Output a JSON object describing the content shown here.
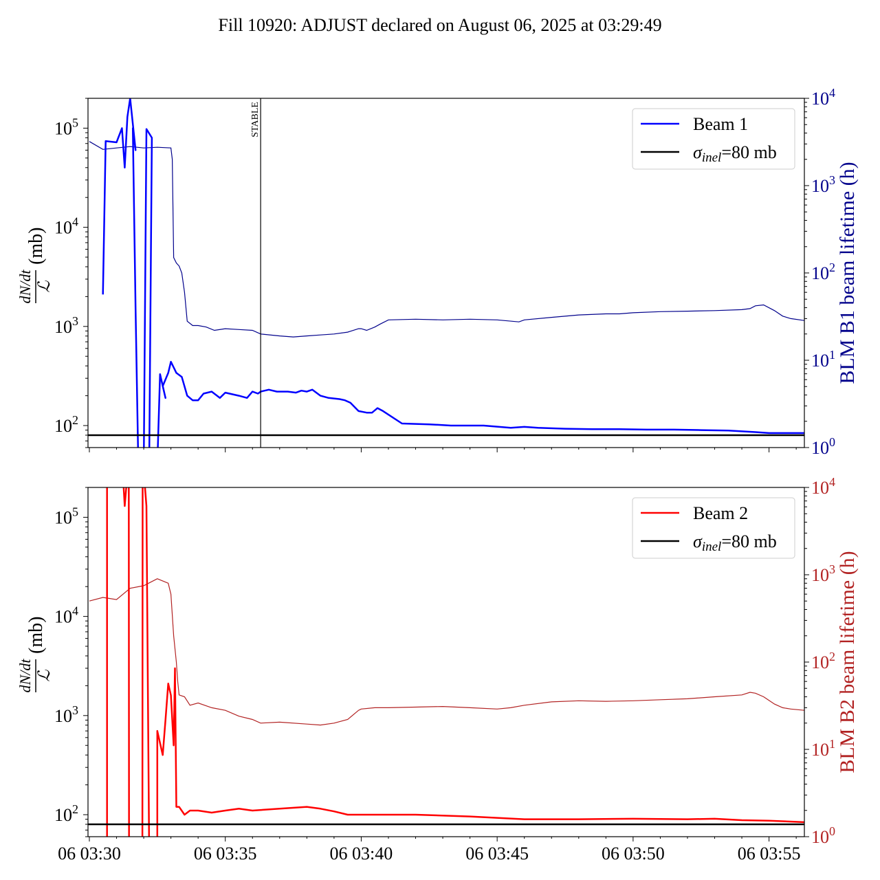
{
  "chart_data": {
    "title": "Fill 10920: ADJUST declared on August 06, 2025 at 03:29:49",
    "x_ticks": [
      "06 03:30",
      "06 03:35",
      "06 03:40",
      "06 03:45",
      "06 03:50",
      "06 03:55"
    ],
    "x_range_min": [
      -0.05,
      26.3
    ],
    "annotation": {
      "text": "STABLE",
      "x_min": 6.3
    },
    "panels": [
      {
        "type": "line",
        "left_axis": {
          "label_num": "dN/dt",
          "label_den": "ℒ",
          "label_unit": "(mb)",
          "scale": "log",
          "ylim": [
            60,
            200000
          ],
          "ticks": [
            {
              "v": 100,
              "exp": "2"
            },
            {
              "v": 1000,
              "exp": "3"
            },
            {
              "v": 10000,
              "exp": "4"
            },
            {
              "v": 100000,
              "exp": "5"
            }
          ],
          "tick_base": "10"
        },
        "right_axis": {
          "label": "BLM B1 beam lifetime (h)",
          "scale": "log",
          "ylim": [
            1,
            10000
          ],
          "ticks": [
            {
              "v": 1,
              "exp": "0"
            },
            {
              "v": 10,
              "exp": "1"
            },
            {
              "v": 100,
              "exp": "2"
            },
            {
              "v": 1000,
              "exp": "3"
            },
            {
              "v": 10000,
              "exp": "4"
            }
          ],
          "tick_base": "10",
          "color": "#00008b"
        },
        "legend": {
          "position": "top-right",
          "entries": [
            {
              "label": "Beam 1",
              "color": "#0000ff"
            },
            {
              "label_sym": "σ",
              "label_sub": "inel",
              "label_rest": "=80 mb",
              "color": "#000000"
            }
          ]
        },
        "reference_line": {
          "y": 80,
          "color": "#000000"
        },
        "main_series": {
          "color": "#0000ff",
          "x_min": [
            0.5,
            0.6,
            0.6,
            1.0,
            1.2,
            1.3,
            1.4,
            1.5,
            1.7,
            1.6,
            1.7,
            1.8,
            2.0,
            2.1,
            2.3,
            2.2,
            2.4,
            2.5,
            2.6,
            2.8,
            2.7,
            2.9,
            3.0,
            3.2,
            3.4,
            3.6,
            3.8,
            4.0,
            4.2,
            4.5,
            4.8,
            5.0,
            5.5,
            5.8,
            6.0,
            6.2,
            6.3,
            6.6,
            6.9,
            7.3,
            7.6,
            7.8,
            8.0,
            8.2,
            8.5,
            8.8,
            9.2,
            9.4,
            9.6,
            9.9,
            10.2,
            10.4,
            10.6,
            10.8,
            11.5,
            12.5,
            13.3,
            13.6,
            14.5,
            15.5,
            16.0,
            16.5,
            17.5,
            18.5,
            19.5,
            20.5,
            21.5,
            22.5,
            23.5,
            24.5,
            25.0,
            25.5,
            26.3
          ],
          "y": [
            2100,
            74000,
            74000,
            72000,
            100000,
            40000,
            130000,
            200000,
            60000,
            100000,
            1500,
            40,
            40,
            98000,
            80000,
            40,
            40,
            40,
            330,
            190,
            250,
            340,
            440,
            340,
            310,
            200,
            180,
            180,
            210,
            220,
            190,
            215,
            200,
            190,
            220,
            210,
            220,
            230,
            220,
            220,
            215,
            225,
            220,
            230,
            200,
            190,
            185,
            180,
            170,
            140,
            135,
            135,
            150,
            140,
            105,
            103,
            100,
            100,
            100,
            95,
            97,
            95,
            93,
            92,
            92,
            91,
            91,
            90,
            89,
            86,
            84,
            84,
            84
          ]
        },
        "lifetime_series": {
          "color": "#00008b",
          "x_min": [
            0.0,
            0.5,
            1.0,
            1.5,
            2.0,
            2.5,
            3.0,
            3.05,
            3.1,
            3.2,
            3.3,
            3.4,
            3.5,
            3.6,
            3.8,
            4.0,
            4.3,
            4.6,
            5.0,
            5.5,
            6.0,
            6.3,
            7.0,
            7.5,
            8.0,
            8.5,
            9.0,
            9.5,
            9.9,
            10.0,
            10.2,
            10.5,
            10.7,
            11.0,
            12.0,
            13.0,
            14.0,
            15.0,
            15.8,
            16.0,
            17.0,
            18.0,
            19.0,
            19.5,
            20.0,
            21.0,
            22.0,
            23.0,
            24.0,
            24.3,
            24.5,
            24.8,
            25.2,
            25.5,
            25.8,
            26.3
          ],
          "y": [
            3200,
            2600,
            2700,
            2800,
            2700,
            2750,
            2700,
            2000,
            150,
            130,
            120,
            100,
            60,
            28,
            25,
            25,
            24,
            22,
            23,
            22.5,
            22,
            20,
            19,
            18.5,
            19,
            19.5,
            20,
            21,
            23,
            23,
            22,
            24,
            26,
            29,
            29.5,
            29,
            29.5,
            29,
            27.5,
            29,
            31,
            33,
            34,
            34,
            35,
            36,
            36.5,
            37,
            38,
            39,
            42,
            43,
            37,
            32,
            30,
            28.5
          ]
        }
      },
      {
        "type": "line",
        "left_axis": {
          "label_num": "dN/dt",
          "label_den": "ℒ",
          "label_unit": "(mb)",
          "scale": "log",
          "ylim": [
            60,
            200000
          ],
          "ticks": [
            {
              "v": 100,
              "exp": "2"
            },
            {
              "v": 1000,
              "exp": "3"
            },
            {
              "v": 10000,
              "exp": "4"
            },
            {
              "v": 100000,
              "exp": "5"
            }
          ],
          "tick_base": "10"
        },
        "right_axis": {
          "label": "BLM B2 beam lifetime (h)",
          "scale": "log",
          "ylim": [
            1,
            10000
          ],
          "ticks": [
            {
              "v": 1,
              "exp": "0"
            },
            {
              "v": 10,
              "exp": "1"
            },
            {
              "v": 100,
              "exp": "2"
            },
            {
              "v": 1000,
              "exp": "3"
            },
            {
              "v": 10000,
              "exp": "4"
            }
          ],
          "tick_base": "10",
          "color": "#b22222"
        },
        "legend": {
          "position": "top-right",
          "entries": [
            {
              "label": "Beam 2",
              "color": "#ff0000"
            },
            {
              "label_sym": "σ",
              "label_sub": "inel",
              "label_rest": "=80 mb",
              "color": "#000000"
            }
          ]
        },
        "reference_line": {
          "y": 80,
          "color": "#000000"
        },
        "main_series": {
          "color": "#ff0000",
          "x_min": [
            0.65,
            0.65,
            0.66,
            1.2,
            1.3,
            1.45,
            1.46,
            1.95,
            1.96,
            2.1,
            2.2,
            2.21,
            2.25,
            2.5,
            2.5,
            2.7,
            2.8,
            2.9,
            3.0,
            3.1,
            3.15,
            3.2,
            3.3,
            3.5,
            3.7,
            4.0,
            4.5,
            5.0,
            5.5,
            6.0,
            7.0,
            8.0,
            8.5,
            9.0,
            9.5,
            10.0,
            12.0,
            14.0,
            15.0,
            16.0,
            18.0,
            20.0,
            22.0,
            23.0,
            24.0,
            25.0,
            26.3
          ],
          "y": [
            40,
            400000,
            400000,
            400000,
            130000,
            400000,
            40,
            40,
            400000,
            130000,
            40,
            40,
            40,
            40,
            700,
            400,
            900,
            2100,
            1600,
            500,
            3000,
            120,
            120,
            100,
            110,
            110,
            105,
            110,
            115,
            110,
            115,
            120,
            115,
            108,
            100,
            100,
            100,
            96,
            93,
            90,
            90,
            91,
            90,
            91,
            88,
            87,
            84
          ]
        },
        "lifetime_series": {
          "color": "#b22222",
          "x_min": [
            0.0,
            0.5,
            1.0,
            1.5,
            2.0,
            2.5,
            2.9,
            3.0,
            3.1,
            3.2,
            3.25,
            3.3,
            3.5,
            3.7,
            4.0,
            4.5,
            5.0,
            5.5,
            6.0,
            6.3,
            7.0,
            8.0,
            8.5,
            9.0,
            9.5,
            9.9,
            10.0,
            10.5,
            11.0,
            12.0,
            13.0,
            14.0,
            15.0,
            15.5,
            16.0,
            17.0,
            18.0,
            19.0,
            20.0,
            21.0,
            22.0,
            23.0,
            24.0,
            24.3,
            24.5,
            24.8,
            25.2,
            25.5,
            25.8,
            26.3
          ],
          "y": [
            500,
            550,
            520,
            700,
            750,
            900,
            800,
            600,
            200,
            100,
            60,
            42,
            40,
            32,
            34,
            30,
            28,
            24,
            22,
            20,
            20.5,
            19.5,
            19,
            20,
            22,
            28,
            29,
            30,
            30,
            30.5,
            31,
            30,
            29,
            30,
            32,
            35,
            36,
            35.5,
            36,
            37,
            38,
            40,
            42,
            45,
            44,
            40,
            33,
            30,
            29,
            28
          ]
        }
      }
    ]
  }
}
